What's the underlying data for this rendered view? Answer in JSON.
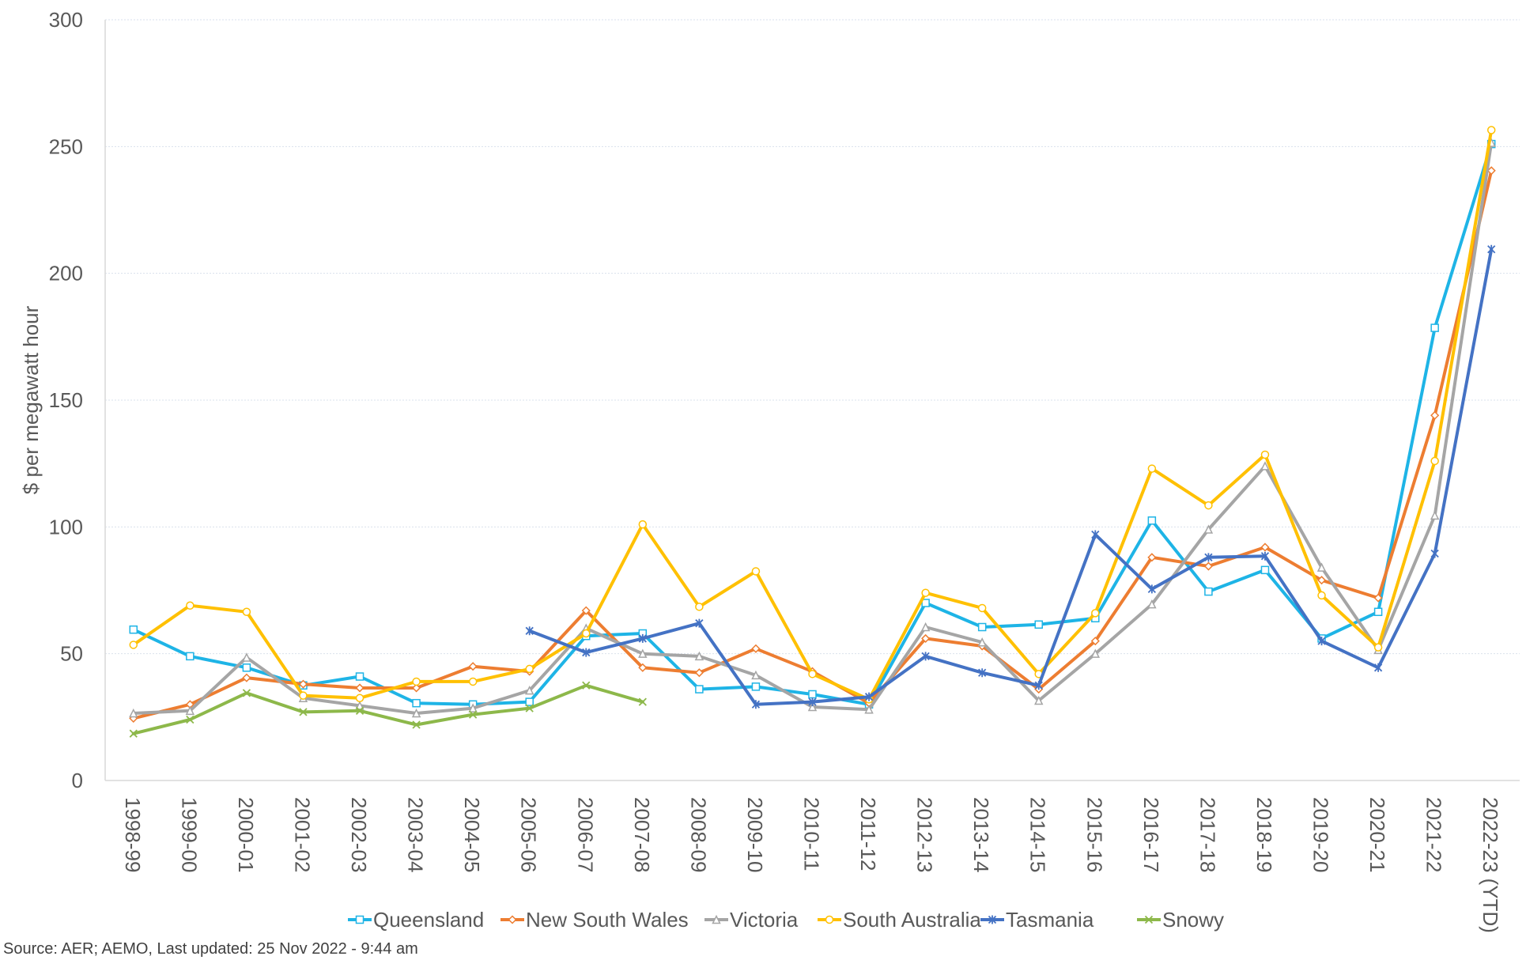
{
  "chart_data": {
    "type": "line",
    "ylabel": "$ per megawatt hour",
    "ylim": [
      0,
      300
    ],
    "yticks": [
      0,
      50,
      100,
      150,
      200,
      250,
      300
    ],
    "grid": true,
    "legend_position": "bottom",
    "categories": [
      "1998-99",
      "1999-00",
      "2000-01",
      "2001-02",
      "2002-03",
      "2003-04",
      "2004-05",
      "2005-06",
      "2006-07",
      "2007-08",
      "2008-09",
      "2009-10",
      "2010-11",
      "2011-12",
      "2012-13",
      "2013-14",
      "2014-15",
      "2015-16",
      "2016-17",
      "2017-18",
      "2018-19",
      "2019-20",
      "2020-21",
      "2021-22",
      "2022-23 (YTD)"
    ],
    "series": [
      {
        "name": "Queensland",
        "color": "#1EB4E6",
        "marker": "square",
        "values": [
          59.5,
          49,
          44.5,
          37.5,
          41,
          30.5,
          30,
          31,
          57,
          58,
          36,
          37,
          34,
          30,
          70,
          60.5,
          61.5,
          64,
          102.5,
          74.5,
          83,
          56,
          66.5,
          178.5,
          251
        ]
      },
      {
        "name": "New South Wales",
        "color": "#ED7D31",
        "marker": "diamond",
        "values": [
          24.5,
          30,
          40.5,
          38,
          36.5,
          36.5,
          45,
          43,
          67,
          44.5,
          42.5,
          52,
          43,
          30.5,
          56,
          53,
          36,
          55,
          88,
          84.5,
          92,
          79,
          72,
          144,
          240.5
        ]
      },
      {
        "name": "Victoria",
        "color": "#A5A5A5",
        "marker": "triangle",
        "values": [
          26.5,
          27.5,
          48.5,
          32.5,
          29.5,
          26.5,
          28.5,
          35.5,
          60,
          50,
          49,
          41.5,
          29,
          28,
          60.5,
          54.5,
          31.5,
          50,
          69.5,
          99,
          124,
          84,
          51.5,
          104.5,
          251.5
        ]
      },
      {
        "name": "South Australia",
        "color": "#FFC000",
        "marker": "circle",
        "values": [
          53.5,
          69,
          66.5,
          33.5,
          32.5,
          39,
          39,
          44,
          58,
          101,
          68.5,
          82.5,
          42,
          32,
          74,
          68,
          42,
          66,
          123,
          108.5,
          128.5,
          73,
          52.5,
          126,
          256.5
        ]
      },
      {
        "name": "Tasmania",
        "color": "#4472C4",
        "marker": "asterisk",
        "values": [
          null,
          null,
          null,
          null,
          null,
          null,
          null,
          59,
          50.5,
          56,
          62,
          30,
          31,
          33,
          49,
          42.5,
          37.5,
          97,
          75.5,
          88,
          88.5,
          55,
          44.5,
          89.5,
          209.5
        ]
      },
      {
        "name": "Snowy",
        "color": "#8DB84A",
        "marker": "cross",
        "values": [
          18.5,
          24,
          34.5,
          27,
          27.5,
          22,
          26,
          28.5,
          37.5,
          31,
          null,
          null,
          null,
          null,
          null,
          null,
          null,
          null,
          null,
          null,
          null,
          null,
          null,
          null,
          null
        ]
      }
    ]
  },
  "source": "Source: AER; AEMO, Last updated: 25 Nov 2022 - 9:44 am"
}
